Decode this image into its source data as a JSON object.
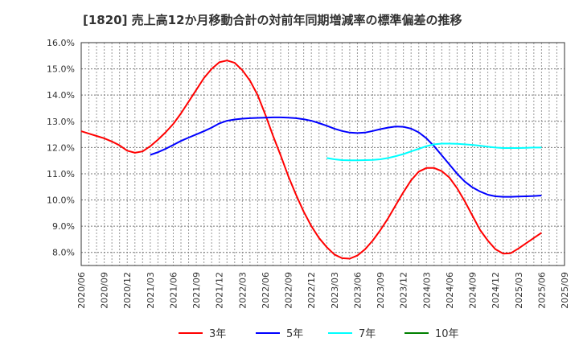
{
  "chart_data": {
    "type": "line",
    "title": "[1820]  売上高12か月移動合計の対前年同期増減率の標準偏差の推移",
    "xlabel": "",
    "ylabel": "",
    "ylim": [
      7.5,
      16.0
    ],
    "yticks": [
      "8.0%",
      "9.0%",
      "10.0%",
      "11.0%",
      "12.0%",
      "13.0%",
      "14.0%",
      "15.0%",
      "16.0%"
    ],
    "ytick_values": [
      8,
      9,
      10,
      11,
      12,
      13,
      14,
      15,
      16
    ],
    "xticks": [
      "2020/06",
      "2020/09",
      "2020/12",
      "2021/03",
      "2021/06",
      "2021/09",
      "2021/12",
      "2022/03",
      "2022/06",
      "2022/09",
      "2022/12",
      "2023/03",
      "2023/06",
      "2023/09",
      "2023/12",
      "2024/03",
      "2024/06",
      "2024/09",
      "2024/12",
      "2025/03",
      "2025/06",
      "2025/09"
    ],
    "x_start": "2020/06",
    "x_months": 63,
    "grid": true,
    "legend_position": "bottom",
    "series": [
      {
        "name": "3年",
        "color": "#ff0000",
        "start_month": 0,
        "values": [
          12.62,
          12.53,
          12.44,
          12.35,
          12.23,
          12.08,
          11.88,
          11.8,
          11.85,
          12.05,
          12.3,
          12.58,
          12.9,
          13.3,
          13.75,
          14.2,
          14.65,
          15.0,
          15.25,
          15.32,
          15.23,
          14.95,
          14.55,
          14.0,
          13.25,
          12.45,
          11.7,
          10.9,
          10.2,
          9.55,
          9.0,
          8.55,
          8.2,
          7.92,
          7.78,
          7.76,
          7.88,
          8.12,
          8.45,
          8.85,
          9.3,
          9.8,
          10.3,
          10.75,
          11.08,
          11.22,
          11.22,
          11.1,
          10.85,
          10.45,
          9.95,
          9.4,
          8.85,
          8.45,
          8.12,
          7.95,
          7.97,
          8.15,
          8.35,
          8.55,
          8.75
        ]
      },
      {
        "name": "5年",
        "color": "#0000ff",
        "start_month": 9,
        "values": [
          11.72,
          11.82,
          11.95,
          12.1,
          12.25,
          12.38,
          12.5,
          12.62,
          12.76,
          12.92,
          13.02,
          13.07,
          13.1,
          13.12,
          13.13,
          13.14,
          13.15,
          13.15,
          13.14,
          13.12,
          13.08,
          13.02,
          12.93,
          12.83,
          12.72,
          12.63,
          12.57,
          12.55,
          12.57,
          12.63,
          12.7,
          12.76,
          12.8,
          12.79,
          12.72,
          12.58,
          12.35,
          12.05,
          11.7,
          11.35,
          11.0,
          10.7,
          10.48,
          10.32,
          10.2,
          10.14,
          10.12,
          10.12,
          10.13,
          10.14,
          10.15,
          10.17
        ]
      },
      {
        "name": "7年",
        "color": "#00ffff",
        "start_month": 32,
        "values": [
          11.6,
          11.55,
          11.52,
          11.51,
          11.51,
          11.52,
          11.53,
          11.55,
          11.6,
          11.67,
          11.75,
          11.85,
          11.95,
          12.05,
          12.12,
          12.15,
          12.15,
          12.14,
          12.12,
          12.1,
          12.07,
          12.03,
          12.0,
          11.98,
          11.98,
          11.98,
          11.99,
          12.0,
          12.0
        ]
      },
      {
        "name": "10年",
        "color": "#008000",
        "start_month": 0,
        "values": []
      }
    ]
  }
}
